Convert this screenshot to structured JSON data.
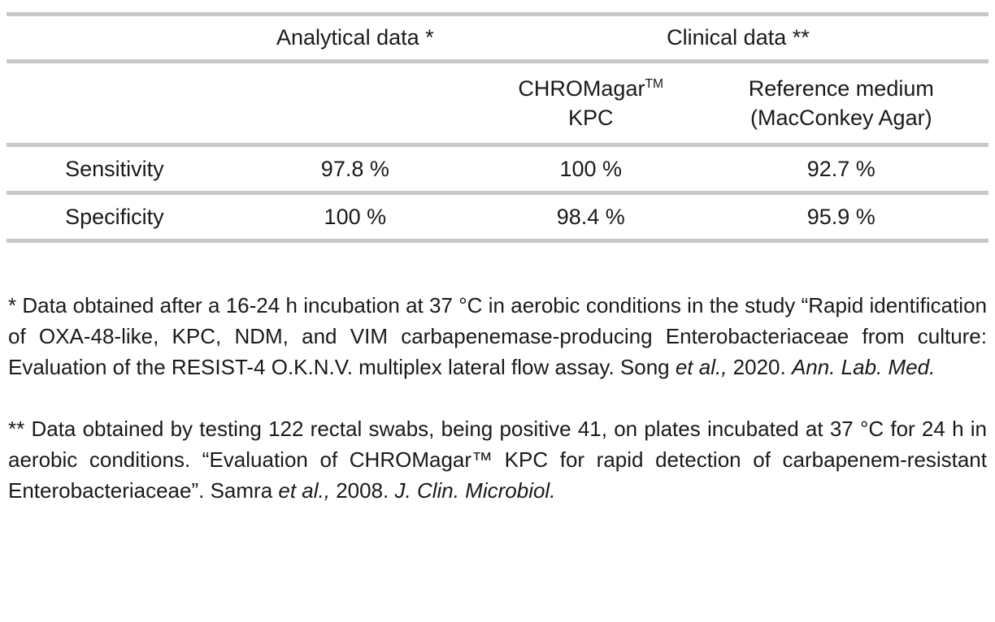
{
  "table": {
    "group_headers": {
      "analytical": "Analytical data *",
      "clinical": "Clinical data **"
    },
    "column_headers": {
      "chromagar_kpc": [
        {
          "t": "CHROMagar"
        },
        {
          "t": "TM",
          "sup": true
        },
        {
          "br": true
        },
        {
          "t": "KPC"
        }
      ],
      "reference_medium": [
        {
          "t": "Reference medium"
        },
        {
          "br": true
        },
        {
          "t": "(MacConkey Agar)"
        }
      ]
    },
    "rows": [
      {
        "label": "Sensitivity",
        "values": [
          "97.8 %",
          "100 %",
          "92.7 %"
        ]
      },
      {
        "label": "Specificity",
        "values": [
          "100 %",
          "98.4 %",
          "95.9 %"
        ]
      }
    ]
  },
  "footnotes": {
    "analytical": [
      {
        "t": "* Data obtained after a 16-24 h incubation at 37 °C in aerobic conditions in the study “Rapid identification of OXA-48-like, KPC, NDM, and VIM carbapenemase-producing Enterobacteriaceae from culture: Evaluation of the RESIST-4 O.K.N.V. multiplex lateral flow assay. Song "
      },
      {
        "t": "et al.,",
        "i": true
      },
      {
        "t": " 2020. "
      },
      {
        "t": "Ann. Lab. Med.",
        "i": true
      }
    ],
    "clinical": [
      {
        "t": "** Data obtained by testing 122 rectal swabs, being positive 41, on plates incubated at 37 °C for 24 h in aerobic conditions. “Evaluation of CHROMagar™ KPC for rapid detection of carbapenem-resistant Enterobacteriaceae”. Samra "
      },
      {
        "t": "et al.,",
        "i": true
      },
      {
        "t": " 2008. "
      },
      {
        "t": "J. Clin. Microbiol.",
        "i": true
      }
    ]
  },
  "colors": {
    "rule": "#c8c8c8",
    "text": "#1a1a1a",
    "background": "#ffffff"
  }
}
